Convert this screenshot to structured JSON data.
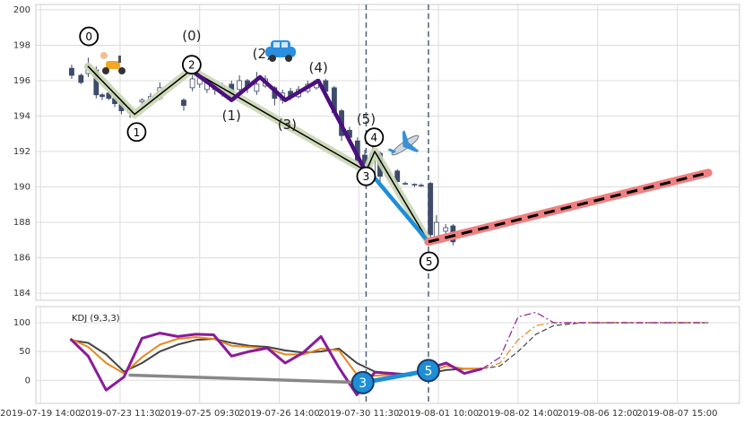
{
  "chart_data": [
    {
      "type": "candlestick",
      "x": [
        4.7,
        6.1,
        7.2,
        8.4,
        9.3,
        10.3,
        11.2,
        12.2,
        13.5,
        15.3,
        16.6,
        18.0,
        21.6,
        22.9,
        24.0,
        25.1,
        26.3,
        27.4,
        28.8,
        30.0,
        31.2,
        32.6,
        33.9,
        35.3,
        36.5,
        37.7,
        38.9,
        40.3,
        41.6,
        43.0,
        44.3,
        45.4,
        46.6,
        47.8,
        48.9,
        50.1,
        51.2,
        52.4,
        53.8,
        55.0,
        56.4,
        57.4,
        58.8,
        59.7,
        61.1,
        62.2
      ],
      "open": [
        196.7,
        196.3,
        196.4,
        196.6,
        195.2,
        195.3,
        195.0,
        194.8,
        194.2,
        194.8,
        194.9,
        195.0,
        194.9,
        195.6,
        195.8,
        195.5,
        195.6,
        195.4,
        195.8,
        195.5,
        196.0,
        195.4,
        195.7,
        195.6,
        194.9,
        195.4,
        195.1,
        195.4,
        195.6,
        196.0,
        195.6,
        194.3,
        193.2,
        192.6,
        191.8,
        190.7,
        191.9,
        190.6,
        190.9,
        190.2,
        190.1,
        190.1,
        190.2,
        187.2,
        187.5,
        187.8
      ],
      "high": [
        196.9,
        196.4,
        197.3,
        196.8,
        195.3,
        195.4,
        195.1,
        194.9,
        194.6,
        195.0,
        195.3,
        195.9,
        195.0,
        196.5,
        196.6,
        196.1,
        195.8,
        195.9,
        196.0,
        196.3,
        196.1,
        196.5,
        196.3,
        195.7,
        195.5,
        195.6,
        195.7,
        196.0,
        196.1,
        196.1,
        195.7,
        194.4,
        193.4,
        192.8,
        192.1,
        192.4,
        192.0,
        190.9,
        191.0,
        190.3,
        190.2,
        190.2,
        190.3,
        188.4,
        187.9,
        187.9
      ],
      "low": [
        196.1,
        195.8,
        196.2,
        195.0,
        194.9,
        194.9,
        194.5,
        194.1,
        193.9,
        194.7,
        194.7,
        194.9,
        194.3,
        195.4,
        195.6,
        195.3,
        195.2,
        195.1,
        194.9,
        195.2,
        195.3,
        195.2,
        195.6,
        194.6,
        194.7,
        194.9,
        195.0,
        195.3,
        195.5,
        195.2,
        194.0,
        192.6,
        192.4,
        191.2,
        190.3,
        190.5,
        190.3,
        190.4,
        190.1,
        190.1,
        190.0,
        190.0,
        187.1,
        187.0,
        187.3,
        186.7
      ],
      "close": [
        196.3,
        195.9,
        196.9,
        195.2,
        195.1,
        195.0,
        194.7,
        194.3,
        194.4,
        194.9,
        195.1,
        195.6,
        194.6,
        196.1,
        196.3,
        195.9,
        195.5,
        195.7,
        195.1,
        196.0,
        195.6,
        195.8,
        196.1,
        195.0,
        195.3,
        195.1,
        195.5,
        195.8,
        196.0,
        195.4,
        194.2,
        192.9,
        192.8,
        191.5,
        190.7,
        191.9,
        190.6,
        190.8,
        190.3,
        190.2,
        190.15,
        190.1,
        187.3,
        188.0,
        187.7,
        186.9
      ],
      "up_color": "#ffffff",
      "down_color": "#3d4a6b",
      "xlim": [
        -0.7,
        105.4
      ],
      "xticks": [
        0,
        12,
        24,
        36,
        48,
        60,
        72,
        84,
        96
      ],
      "ylim": [
        183.6,
        200.3
      ],
      "yticks": [
        184,
        186,
        188,
        190,
        192,
        194,
        196,
        198,
        200
      ],
      "grid": true,
      "vlines": [
        49.1,
        58.5
      ],
      "lines": [
        {
          "color": "#c9d6b3",
          "x": [
            7.2,
            14.2,
            22.7,
            49.1,
            50.4,
            58.5
          ],
          "values": [
            196.8,
            194.1,
            196.6,
            190.9,
            192.0,
            186.9
          ]
        },
        {
          "color": "#000000",
          "x": [
            7.2,
            14.2,
            22.7,
            49.1,
            50.4,
            58.5
          ],
          "values": [
            196.8,
            194.1,
            196.6,
            190.9,
            192.0,
            186.9
          ]
        },
        {
          "color": "#4b0f7f",
          "x": [
            22.7,
            28.8,
            33.1,
            36.9,
            41.9,
            49.1
          ],
          "values": [
            196.6,
            194.9,
            196.2,
            194.9,
            196.0,
            190.8
          ]
        },
        {
          "color": "#1e8fd6",
          "x": [
            50.4,
            58.5
          ],
          "values": [
            190.5,
            186.9
          ]
        },
        {
          "color": "#f08080",
          "x": [
            58.5,
            100.7
          ],
          "values": [
            186.9,
            190.8
          ]
        },
        {
          "color": "#000000",
          "x": [
            58.5,
            100.7
          ],
          "values": [
            186.9,
            190.8
          ],
          "dashed": true
        }
      ],
      "circled_labels": [
        {
          "text": "0",
          "x": 7.3,
          "y": 198.5
        },
        {
          "text": "1",
          "x": 14.5,
          "y": 193.1
        },
        {
          "text": "2",
          "x": 22.8,
          "y": 196.9
        },
        {
          "text": "3",
          "x": 49.1,
          "y": 190.6
        },
        {
          "text": "4",
          "x": 50.3,
          "y": 192.8
        },
        {
          "text": "5",
          "x": 58.6,
          "y": 185.8
        }
      ],
      "labels": [
        {
          "text": "(0)",
          "x": 22.8,
          "y": 198.5
        },
        {
          "text": "(1)",
          "x": 28.8,
          "y": 194.0
        },
        {
          "text": "(2)",
          "x": 33.4,
          "y": 197.5
        },
        {
          "text": "(3)",
          "x": 37.2,
          "y": 193.5
        },
        {
          "text": "(4)",
          "x": 41.9,
          "y": 196.7
        },
        {
          "text": "(5)",
          "x": 49.1,
          "y": 193.8
        }
      ]
    },
    {
      "type": "line",
      "title": "KDJ (9,3,3)",
      "x": [
        4.5,
        7.2,
        9.9,
        12.6,
        15.3,
        18.0,
        20.7,
        23.4,
        26.1,
        28.8,
        31.5,
        34.2,
        36.9,
        39.6,
        42.3,
        45.0,
        47.7,
        50.4,
        53.1,
        55.8,
        58.5,
        61.2,
        63.9,
        66.6,
        69.3,
        72.0,
        74.7,
        77.4,
        81.8,
        88.5,
        95.3,
        100.7
      ],
      "series": [
        {
          "color": "#444444",
          "values": [
            70,
            65,
            45,
            15,
            30,
            50,
            62,
            70,
            72,
            65,
            60,
            58,
            52,
            48,
            50,
            55,
            30,
            15,
            12,
            11,
            12,
            18,
            20,
            20,
            25,
            50,
            80,
            95,
            100,
            100,
            100,
            100
          ]
        },
        {
          "color": "#e8871e",
          "values": [
            72,
            58,
            30,
            12,
            40,
            62,
            72,
            75,
            72,
            60,
            58,
            55,
            45,
            45,
            55,
            52,
            10,
            8,
            10,
            10,
            14,
            25,
            20,
            20,
            30,
            70,
            95,
            100,
            100,
            100,
            100,
            100
          ]
        },
        {
          "color": "#8b1a9b",
          "values": [
            72,
            42,
            -17,
            6,
            73,
            82,
            76,
            80,
            79,
            42,
            50,
            56,
            30,
            48,
            76,
            22,
            -25,
            14,
            12,
            9,
            21,
            30,
            12,
            20,
            40,
            110,
            118,
            100,
            100,
            100,
            100,
            100
          ]
        }
      ],
      "dash_from_x": 66.6,
      "xlim": [
        -0.7,
        105.4
      ],
      "xticks": [
        {
          "value": 0,
          "label": "2019-07-19 14:00"
        },
        {
          "value": 12,
          "label": "2019-07-23 11:30"
        },
        {
          "value": 24,
          "label": "2019-07-25 09:30"
        },
        {
          "value": 36,
          "label": "2019-07-26 14:00"
        },
        {
          "value": 48,
          "label": "2019-07-30 11:30"
        },
        {
          "value": 60,
          "label": "2019-08-01 10:00"
        },
        {
          "value": 72,
          "label": "2019-08-02 14:00"
        },
        {
          "value": 84,
          "label": "2019-08-06 12:00"
        },
        {
          "value": 96,
          "label": "2019-08-07 15:00"
        }
      ],
      "ylim": [
        -40,
        128
      ],
      "yticks": [
        0,
        50,
        100
      ],
      "grid": true,
      "vlines": [
        49.1,
        58.5
      ],
      "lines": [
        {
          "color": "#888888",
          "x": [
            13.5,
            48.6
          ],
          "values": [
            9,
            -4
          ]
        },
        {
          "color": "#1e8fd6",
          "x": [
            48.6,
            58.5
          ],
          "values": [
            -4,
            17
          ]
        }
      ],
      "markers": [
        {
          "text": "3",
          "x": 48.6,
          "y": -4
        },
        {
          "text": "5",
          "x": 58.5,
          "y": 17
        }
      ]
    }
  ]
}
